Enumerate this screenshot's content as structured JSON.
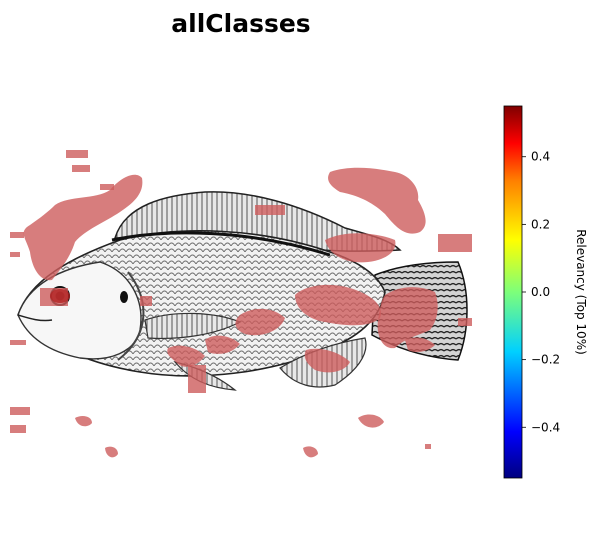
{
  "chart_data": {
    "type": "heatmap",
    "title": "allClasses",
    "image_subject": "fish-sketch",
    "overlay": {
      "color": "#cd5c5c",
      "threshold": "top 10%",
      "regions": [
        {
          "name": "upper-left-blob",
          "relevancy": 0.3
        },
        {
          "name": "head-eye",
          "relevancy": 0.45
        },
        {
          "name": "upper-right-blob",
          "relevancy": 0.3
        },
        {
          "name": "dorsal-fin",
          "relevancy": 0.3
        },
        {
          "name": "belly",
          "relevancy": 0.3
        },
        {
          "name": "tail-base",
          "relevancy": 0.35
        },
        {
          "name": "lower-fins",
          "relevancy": 0.3
        },
        {
          "name": "bottom-specks",
          "relevancy": 0.3
        }
      ]
    },
    "colorbar": {
      "label": "Relevancy (Top 10%)",
      "range": [
        -0.55,
        0.55
      ],
      "ticks": [
        0.4,
        0.2,
        0.0,
        -0.2,
        -0.4
      ],
      "tick_labels": [
        "0.4",
        "0.2",
        "0.0",
        "−0.2",
        "−0.4"
      ],
      "colormap": "jet",
      "colormap_stops": [
        "#00007f",
        "#0000ff",
        "#007fff",
        "#00ffff",
        "#7fff7f",
        "#ffff00",
        "#ff7f00",
        "#ff0000",
        "#7f0000"
      ]
    }
  }
}
